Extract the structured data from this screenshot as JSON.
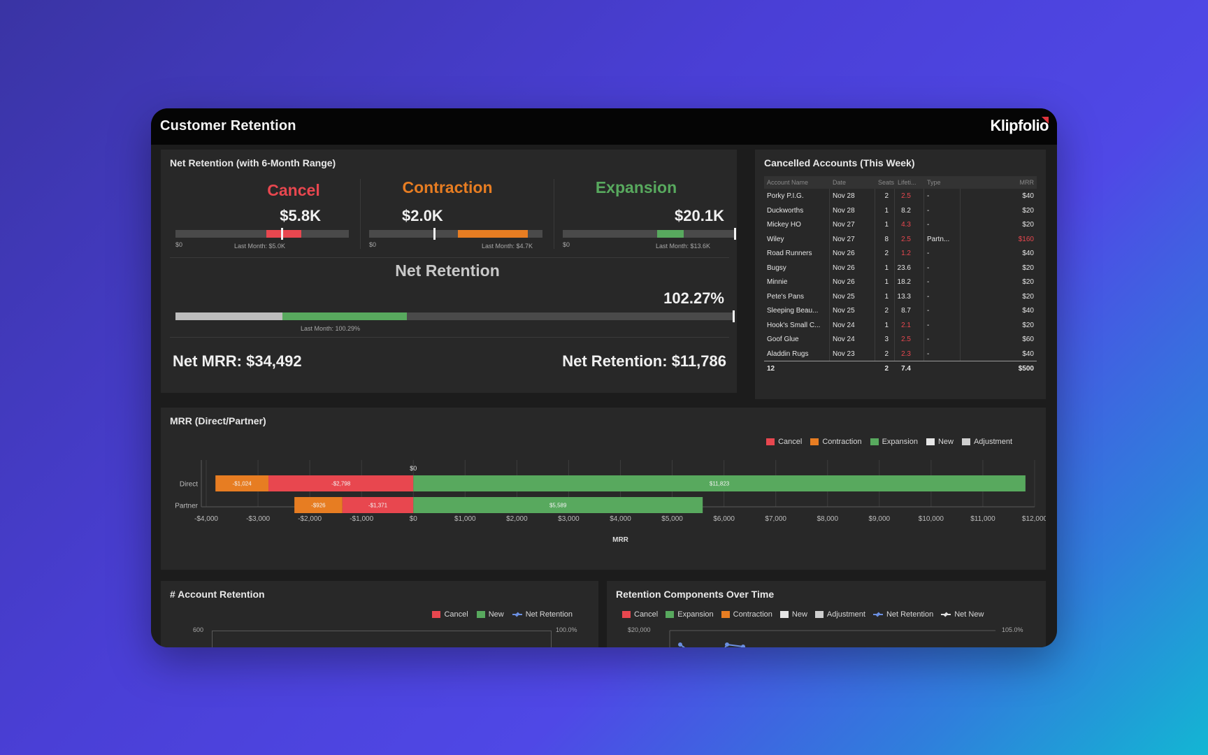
{
  "app": {
    "title": "Customer Retention",
    "brand": "Klipfolio"
  },
  "net_retention_panel": {
    "title": "Net Retention (with 6-Month Range)",
    "cancel": {
      "label": "Cancel",
      "value": "$5.8K",
      "min_label": "$0",
      "last_month": "Last Month: $5.0K",
      "color": "#e8474f"
    },
    "contraction": {
      "label": "Contraction",
      "value": "$2.0K",
      "min_label": "$0",
      "last_month": "Last Month: $4.7K",
      "color": "#e77d22"
    },
    "expansion": {
      "label": "Expansion",
      "value": "$20.1K",
      "min_label": "$0",
      "last_month": "Last Month: $13.6K",
      "color": "#58a95e"
    },
    "net": {
      "label": "Net Retention",
      "value": "102.27%",
      "last_month": "Last Month: 100.29%"
    },
    "net_mrr": "Net MRR: $34,492",
    "net_retention_total": "Net Retention: $11,786"
  },
  "cancelled_accounts": {
    "title": "Cancelled Accounts (This Week)",
    "columns": [
      "Account Name",
      "Date",
      "Seats",
      "Lifeti...",
      "Type",
      "MRR"
    ],
    "rows": [
      {
        "name": "Porky P.I.G.",
        "date": "Nov 28",
        "seats": "2",
        "life": "2.5",
        "life_red": true,
        "type": "-",
        "mrr": "$40",
        "mrr_red": false
      },
      {
        "name": "Duckworths",
        "date": "Nov 28",
        "seats": "1",
        "life": "8.2",
        "life_red": false,
        "type": "-",
        "mrr": "$20",
        "mrr_red": false
      },
      {
        "name": "Mickey HO",
        "date": "Nov 27",
        "seats": "1",
        "life": "4.3",
        "life_red": true,
        "type": "-",
        "mrr": "$20",
        "mrr_red": false
      },
      {
        "name": "Wiley",
        "date": "Nov 27",
        "seats": "8",
        "life": "2.5",
        "life_red": true,
        "type": "Partn...",
        "mrr": "$160",
        "mrr_red": true
      },
      {
        "name": "Road Runners",
        "date": "Nov 26",
        "seats": "2",
        "life": "1.2",
        "life_red": true,
        "type": "-",
        "mrr": "$40",
        "mrr_red": false
      },
      {
        "name": "Bugsy",
        "date": "Nov 26",
        "seats": "1",
        "life": "23.6",
        "life_red": false,
        "type": "-",
        "mrr": "$20",
        "mrr_red": false
      },
      {
        "name": "Minnie",
        "date": "Nov 26",
        "seats": "1",
        "life": "18.2",
        "life_red": false,
        "type": "-",
        "mrr": "$20",
        "mrr_red": false
      },
      {
        "name": "Pete's Pans",
        "date": "Nov 25",
        "seats": "1",
        "life": "13.3",
        "life_red": false,
        "type": "-",
        "mrr": "$20",
        "mrr_red": false
      },
      {
        "name": "Sleeping Beau...",
        "date": "Nov 25",
        "seats": "2",
        "life": "8.7",
        "life_red": false,
        "type": "-",
        "mrr": "$40",
        "mrr_red": false
      },
      {
        "name": "Hook's Small C...",
        "date": "Nov 24",
        "seats": "1",
        "life": "2.1",
        "life_red": true,
        "type": "-",
        "mrr": "$20",
        "mrr_red": false
      },
      {
        "name": "Goof Glue",
        "date": "Nov 24",
        "seats": "3",
        "life": "2.5",
        "life_red": true,
        "type": "-",
        "mrr": "$60",
        "mrr_red": false
      },
      {
        "name": "Aladdin Rugs",
        "date": "Nov 23",
        "seats": "2",
        "life": "2.3",
        "life_red": true,
        "type": "-",
        "mrr": "$40",
        "mrr_red": false
      }
    ],
    "footer": {
      "count": "12",
      "seats": "2",
      "life": "7.4",
      "mrr": "$500"
    }
  },
  "mrr_panel": {
    "title": "MRR (Direct/Partner)",
    "legend": [
      {
        "label": "Cancel",
        "color": "#e8474f"
      },
      {
        "label": "Contraction",
        "color": "#e77d22"
      },
      {
        "label": "Expansion",
        "color": "#58a95e"
      },
      {
        "label": "New",
        "color": "#e6e6e6"
      },
      {
        "label": "Adjustment",
        "color": "#cfcfcf"
      }
    ]
  },
  "chart_data": [
    {
      "type": "bar",
      "orientation": "horizontal-stacked",
      "title": "MRR (Direct/Partner)",
      "xlabel": "MRR",
      "categories": [
        "Direct",
        "Partner"
      ],
      "series": [
        {
          "name": "Contraction",
          "values": [
            -1024,
            -926
          ],
          "labels": [
            "-$1,024",
            "-$926"
          ]
        },
        {
          "name": "Cancel",
          "values": [
            -2798,
            -1371
          ],
          "labels": [
            "-$2,798",
            "-$1,371"
          ]
        },
        {
          "name": "Expansion",
          "values": [
            11823,
            5589
          ],
          "labels": [
            "$11,823",
            "$5,589"
          ]
        }
      ],
      "xlim": [
        -4000,
        12000
      ],
      "x_ticks": [
        "-$4,000",
        "-$3,000",
        "-$2,000",
        "-$1,000",
        "$0",
        "$1,000",
        "$2,000",
        "$3,000",
        "$4,000",
        "$5,000",
        "$6,000",
        "$7,000",
        "$8,000",
        "$9,000",
        "$10,000",
        "$11,000",
        "$12,000"
      ],
      "zero_label": "$0",
      "legend_position": "top-right",
      "grid": true
    },
    {
      "type": "bar",
      "title": "# Account Retention",
      "legend": [
        {
          "label": "Cancel",
          "color": "#e8474f"
        },
        {
          "label": "New",
          "color": "#58a95e"
        },
        {
          "label": "Net Retention",
          "color": "#6b8fe0",
          "kind": "line"
        }
      ],
      "y_left_top": "600",
      "y_right_top": "100.0%"
    },
    {
      "type": "bar",
      "title": "Retention Components Over Time",
      "legend": [
        {
          "label": "Cancel",
          "color": "#e8474f"
        },
        {
          "label": "Expansion",
          "color": "#58a95e"
        },
        {
          "label": "Contraction",
          "color": "#e77d22"
        },
        {
          "label": "New",
          "color": "#e6e6e6"
        },
        {
          "label": "Adjustment",
          "color": "#cfcfcf"
        },
        {
          "label": "Net Retention",
          "color": "#6b8fe0",
          "kind": "line"
        },
        {
          "label": "Net New",
          "color": "#e0e0e0",
          "kind": "line"
        }
      ],
      "y_left_top": "$20,000",
      "y_right_top": "105.0%"
    }
  ]
}
